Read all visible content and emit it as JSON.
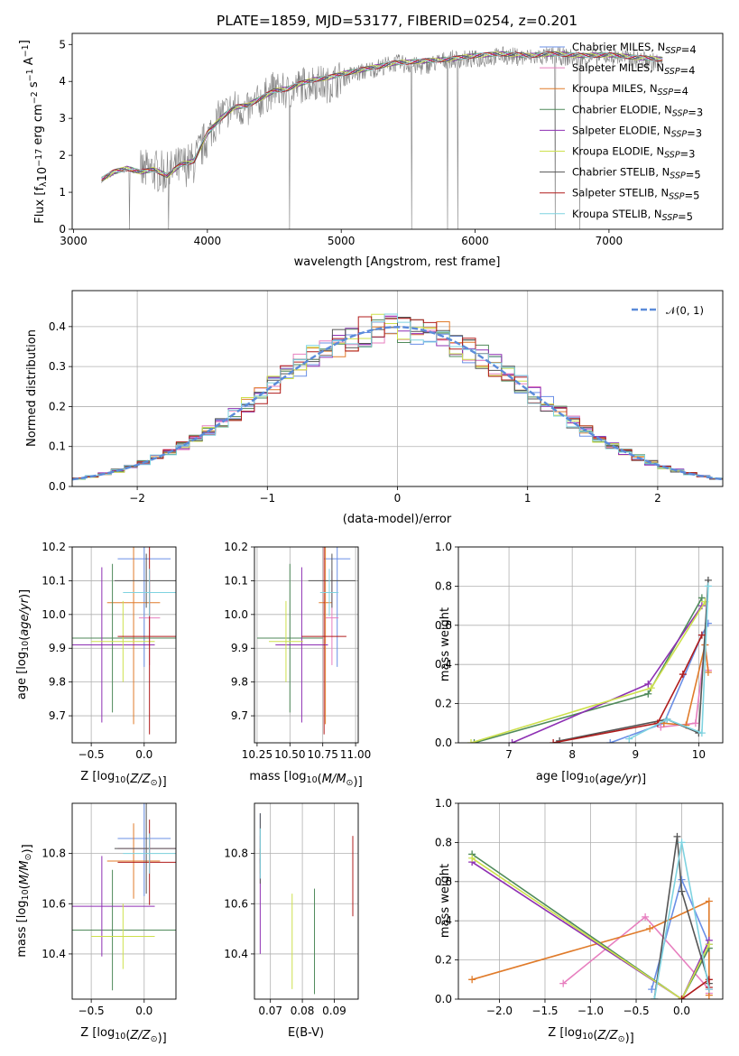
{
  "title": "PLATE=1859, MJD=53177, FIBERID=0254, z=0.201",
  "model_colors": {
    "Chabrier MILES": "#6a8fe6",
    "Salpeter MILES": "#e77fbf",
    "Kroupa MILES": "#e07b2a",
    "Chabrier ELODIE": "#4f8a5a",
    "Salpeter ELODIE": "#8d2fb3",
    "Kroupa ELODIE": "#cde04c",
    "Chabrier STELIB": "#555555",
    "Salpeter STELIB": "#b01c1c",
    "Kroupa STELIB": "#7fd3e0"
  },
  "chart_data": [
    {
      "id": "spectrum",
      "type": "line",
      "title": "PLATE=1859, MJD=53177, FIBERID=0254, z=0.201",
      "xlabel": "wavelength [Angstrom, rest frame]",
      "ylabel": "Flux [f_λ 10^-17 erg cm^-2 s^-1 A^-1]",
      "xlim": [
        2990,
        7850
      ],
      "ylim": [
        0,
        5.3
      ],
      "xticks": [
        3000,
        4000,
        5000,
        6000,
        7000
      ],
      "yticks": [
        0,
        1,
        2,
        3,
        4,
        5
      ],
      "legend_position": "upper-right",
      "observed_spectrum": {
        "color": "#808080",
        "x": [
          3210,
          3300,
          3400,
          3500,
          3600,
          3700,
          3800,
          3900,
          4000,
          4100,
          4200,
          4300,
          4400,
          4500,
          4600,
          4700,
          4800,
          4900,
          5000,
          5200,
          5400,
          5600,
          5800,
          6000,
          6200,
          6400,
          6600,
          6800,
          7000,
          7200,
          7400
        ],
        "y": [
          1.3,
          1.5,
          1.6,
          1.55,
          1.6,
          1.5,
          1.7,
          1.8,
          2.5,
          3.1,
          3.3,
          3.2,
          3.5,
          3.8,
          3.7,
          3.9,
          4.0,
          3.9,
          4.1,
          4.3,
          4.5,
          4.4,
          4.6,
          4.6,
          4.7,
          4.65,
          4.7,
          4.6,
          4.7,
          4.6,
          4.5
        ]
      },
      "model": {
        "x": [
          3210,
          3300,
          3400,
          3500,
          3600,
          3700,
          3800,
          3900,
          4000,
          4100,
          4200,
          4300,
          4400,
          4500,
          4600,
          4700,
          4800,
          4900,
          5000,
          5200,
          5400,
          5600,
          5800,
          6000,
          6200,
          6400,
          6600,
          6800,
          7000,
          7200,
          7400
        ],
        "y": [
          1.35,
          1.55,
          1.65,
          1.55,
          1.62,
          1.45,
          1.75,
          1.85,
          2.6,
          3.0,
          3.3,
          3.35,
          3.55,
          3.75,
          3.8,
          3.95,
          4.05,
          4.1,
          4.2,
          4.35,
          4.5,
          4.55,
          4.6,
          4.7,
          4.75,
          4.7,
          4.75,
          4.7,
          4.72,
          4.65,
          4.6
        ]
      },
      "legend": [
        {
          "model": "Chabrier MILES",
          "n_ssp": "4"
        },
        {
          "model": "Salpeter MILES",
          "n_ssp": "4"
        },
        {
          "model": "Kroupa MILES",
          "n_ssp": "4"
        },
        {
          "model": "Chabrier ELODIE",
          "n_ssp": "3"
        },
        {
          "model": "Salpeter ELODIE",
          "n_ssp": "3"
        },
        {
          "model": "Kroupa ELODIE",
          "n_ssp": "3"
        },
        {
          "model": "Chabrier STELIB",
          "n_ssp": "5"
        },
        {
          "model": "Salpeter STELIB",
          "n_ssp": "5"
        },
        {
          "model": "Kroupa STELIB",
          "n_ssp": "5"
        }
      ]
    },
    {
      "id": "residuals",
      "type": "line",
      "xlabel": "(data-model)/error",
      "ylabel": "Normed distribution",
      "xlim": [
        -2.5,
        2.5
      ],
      "ylim": [
        0,
        0.49
      ],
      "xticks": [
        -2,
        -1,
        0,
        1,
        2
      ],
      "yticks": [
        0.0,
        0.1,
        0.2,
        0.3,
        0.4
      ],
      "grid": true,
      "legend_position": "upper-right",
      "gaussian_label": "𝒩(0, 1)",
      "gaussian_color": "#5b8bd9",
      "bin_width": 0.1,
      "bin_start": -2.5
    },
    {
      "id": "age_vs_Z",
      "type": "scatter",
      "xlabel": "Z [log10(Z/Z⊙)]",
      "ylabel": "age [log10(age/yr)]",
      "xlim": [
        -0.68,
        0.3
      ],
      "ylim": [
        9.62,
        10.2
      ],
      "xticks": [
        -0.5,
        0.0
      ],
      "yticks": [
        9.7,
        9.8,
        9.9,
        10.0,
        10.1,
        10.2
      ],
      "grid": true,
      "points": [
        {
          "model": "Chabrier MILES",
          "x": 0.0,
          "xerr": 0.25,
          "y": 10.165,
          "yerr": 0.32
        },
        {
          "model": "Salpeter MILES",
          "x": 0.05,
          "xerr": 0.1,
          "y": 9.99,
          "yerr": 0.14
        },
        {
          "model": "Kroupa MILES",
          "x": -0.1,
          "xerr": 0.25,
          "y": 10.035,
          "yerr": 0.36
        },
        {
          "model": "Chabrier ELODIE",
          "x": -0.3,
          "xerr": 0.62,
          "y": 9.93,
          "yerr": 0.22
        },
        {
          "model": "Salpeter ELODIE",
          "x": -0.4,
          "xerr": 0.5,
          "y": 9.91,
          "yerr": 0.23
        },
        {
          "model": "Kroupa ELODIE",
          "x": -0.2,
          "xerr": 0.3,
          "y": 9.92,
          "yerr": 0.12
        },
        {
          "model": "Chabrier STELIB",
          "x": 0.02,
          "xerr": 0.3,
          "y": 10.1,
          "yerr": 0.08
        },
        {
          "model": "Salpeter STELIB",
          "x": 0.05,
          "xerr": 0.3,
          "y": 9.935,
          "yerr": 0.29
        },
        {
          "model": "Kroupa STELIB",
          "x": 0.05,
          "xerr": 0.25,
          "y": 10.065,
          "yerr": 0.07
        }
      ]
    },
    {
      "id": "age_vs_mass",
      "type": "scatter",
      "xlabel": "mass [log10(M/M⊙)]",
      "ylabel": "",
      "xlim": [
        10.23,
        11.02
      ],
      "ylim": [
        9.62,
        10.2
      ],
      "xticks": [
        10.25,
        10.5,
        10.75,
        11.0
      ],
      "xticklabels": [
        "10.25",
        "10.50",
        "10.75",
        "11.00"
      ],
      "yticks": [
        9.7,
        9.8,
        9.9,
        10.0,
        10.1,
        10.2
      ],
      "grid": true,
      "points": [
        {
          "model": "Chabrier MILES",
          "x": 10.86,
          "xerr": 0.1,
          "y": 10.165,
          "yerr": 0.32
        },
        {
          "model": "Salpeter MILES",
          "x": 10.82,
          "xerr": 0.05,
          "y": 9.99,
          "yerr": 0.14
        },
        {
          "model": "Kroupa MILES",
          "x": 10.77,
          "xerr": 0.05,
          "y": 10.035,
          "yerr": 0.36
        },
        {
          "model": "Chabrier ELODIE",
          "x": 10.5,
          "xerr": 0.25,
          "y": 9.93,
          "yerr": 0.22
        },
        {
          "model": "Salpeter ELODIE",
          "x": 10.59,
          "xerr": 0.2,
          "y": 9.91,
          "yerr": 0.23
        },
        {
          "model": "Kroupa ELODIE",
          "x": 10.47,
          "xerr": 0.13,
          "y": 9.92,
          "yerr": 0.12
        },
        {
          "model": "Chabrier STELIB",
          "x": 10.82,
          "xerr": 0.18,
          "y": 10.1,
          "yerr": 0.08
        },
        {
          "model": "Salpeter STELIB",
          "x": 10.76,
          "xerr": 0.17,
          "y": 9.935,
          "yerr": 0.29
        },
        {
          "model": "Kroupa STELIB",
          "x": 10.8,
          "xerr": 0.07,
          "y": 10.065,
          "yerr": 0.07
        }
      ]
    },
    {
      "id": "mass_weight_vs_age",
      "type": "line",
      "xlabel": "age [log10(age/yr)]",
      "ylabel": "mass weight",
      "xlim": [
        6.2,
        10.38
      ],
      "ylim": [
        0,
        1.0
      ],
      "xticks": [
        7,
        8,
        9,
        10
      ],
      "yticks": [
        0.0,
        0.2,
        0.4,
        0.6,
        0.8,
        1.0
      ],
      "grid": true,
      "series": [
        {
          "model": "Chabrier MILES",
          "x": [
            8.6,
            9.45,
            10.05,
            10.15
          ],
          "y": [
            0.0,
            0.1,
            0.55,
            0.61
          ]
        },
        {
          "model": "Salpeter MILES",
          "x": [
            9.4,
            9.95,
            10.1,
            10.15
          ],
          "y": [
            0.08,
            0.1,
            0.5,
            0.37
          ]
        },
        {
          "model": "Kroupa MILES",
          "x": [
            9.45,
            9.8,
            10.1,
            10.15
          ],
          "y": [
            0.1,
            0.09,
            0.5,
            0.36
          ]
        },
        {
          "model": "Chabrier ELODIE",
          "x": [
            6.45,
            9.2,
            10.05
          ],
          "y": [
            0.0,
            0.25,
            0.74
          ]
        },
        {
          "model": "Salpeter ELODIE",
          "x": [
            7.05,
            9.2,
            10.05
          ],
          "y": [
            0.0,
            0.3,
            0.7
          ]
        },
        {
          "model": "Kroupa ELODIE",
          "x": [
            6.4,
            9.25,
            10.1
          ],
          "y": [
            0.0,
            0.28,
            0.72
          ]
        },
        {
          "model": "Chabrier STELIB",
          "x": [
            7.8,
            9.5,
            10.0,
            10.15
          ],
          "y": [
            0.01,
            0.12,
            0.05,
            0.83
          ]
        },
        {
          "model": "Salpeter STELIB",
          "x": [
            7.7,
            9.35,
            9.75,
            10.05
          ],
          "y": [
            0.0,
            0.1,
            0.35,
            0.55
          ]
        },
        {
          "model": "Kroupa STELIB",
          "x": [
            8.9,
            9.5,
            10.05,
            10.15
          ],
          "y": [
            0.02,
            0.12,
            0.05,
            0.8
          ]
        }
      ]
    },
    {
      "id": "mass_vs_Z",
      "type": "scatter",
      "xlabel": "Z [log10(Z/Z⊙)]",
      "ylabel": "mass [log10(M/M⊙)]",
      "xlim": [
        -0.68,
        0.3
      ],
      "ylim": [
        10.22,
        11.0
      ],
      "xticks": [
        -0.5,
        0.0
      ],
      "yticks": [
        10.4,
        10.6,
        10.8
      ],
      "grid": true,
      "points": [
        {
          "model": "Chabrier MILES",
          "x": 0.0,
          "xerr": 0.25,
          "y": 10.86,
          "yerr": 0.23
        },
        {
          "model": "Salpeter MILES",
          "x": 0.05,
          "xerr": 0.3,
          "y": 10.82,
          "yerr": 0.07
        },
        {
          "model": "Kroupa MILES",
          "x": -0.1,
          "xerr": 0.25,
          "y": 10.77,
          "yerr": 0.15
        },
        {
          "model": "Chabrier ELODIE",
          "x": -0.3,
          "xerr": 0.62,
          "y": 10.495,
          "yerr": 0.24
        },
        {
          "model": "Salpeter ELODIE",
          "x": -0.4,
          "xerr": 0.5,
          "y": 10.59,
          "yerr": 0.2
        },
        {
          "model": "Kroupa ELODIE",
          "x": -0.2,
          "xerr": 0.3,
          "y": 10.47,
          "yerr": 0.13
        },
        {
          "model": "Chabrier STELIB",
          "x": 0.02,
          "xerr": 0.3,
          "y": 10.82,
          "yerr": 0.18
        },
        {
          "model": "Salpeter STELIB",
          "x": 0.05,
          "xerr": 0.3,
          "y": 10.765,
          "yerr": 0.17
        },
        {
          "model": "Kroupa STELIB",
          "x": 0.05,
          "xerr": 0.25,
          "y": 10.8,
          "yerr": 0.08
        }
      ]
    },
    {
      "id": "mass_vs_ebv",
      "type": "scatter",
      "xlabel": "E(B-V)",
      "ylabel": "",
      "xlim": [
        0.065,
        0.0975
      ],
      "ylim": [
        10.22,
        11.0
      ],
      "xticks": [
        0.07,
        0.08,
        0.09
      ],
      "yticks": [
        10.4,
        10.6,
        10.8
      ],
      "grid": true,
      "points": [
        {
          "model": "Chabrier MILES",
          "x": 0.0668,
          "y": 10.86,
          "yerr": 0.1
        },
        {
          "model": "Salpeter MILES",
          "x": 0.0668,
          "y": 10.82,
          "yerr": 0.05
        },
        {
          "model": "Kroupa MILES",
          "x": 0.0668,
          "y": 10.77,
          "yerr": 0.05
        },
        {
          "model": "Chabrier ELODIE",
          "x": 0.0838,
          "y": 10.45,
          "yerr": 0.21
        },
        {
          "model": "Salpeter ELODIE",
          "x": 0.0668,
          "y": 10.59,
          "yerr": 0.19
        },
        {
          "model": "Kroupa ELODIE",
          "x": 0.0768,
          "y": 10.45,
          "yerr": 0.19
        },
        {
          "model": "Chabrier STELIB",
          "x": 0.0668,
          "y": 10.82,
          "yerr": 0.14
        },
        {
          "model": "Salpeter STELIB",
          "x": 0.0958,
          "y": 10.71,
          "yerr": 0.16
        },
        {
          "model": "Kroupa STELIB",
          "x": 0.0668,
          "y": 10.8,
          "yerr": 0.1
        }
      ]
    },
    {
      "id": "mass_weight_vs_Z",
      "type": "line",
      "xlabel": "Z [log10(Z/Z⊙)]",
      "ylabel": "mass weight",
      "xlim": [
        -2.45,
        0.45
      ],
      "ylim": [
        0,
        1.0
      ],
      "xticks": [
        -2.0,
        -1.5,
        -1.0,
        -0.5,
        0.0
      ],
      "yticks": [
        0.0,
        0.2,
        0.4,
        0.6,
        0.8,
        1.0
      ],
      "grid": true,
      "series": [
        {
          "model": "Chabrier MILES",
          "x": [
            -0.33,
            0.0,
            0.3,
            0.3
          ],
          "y": [
            0.05,
            0.61,
            0.28,
            0.05
          ]
        },
        {
          "model": "Salpeter MILES",
          "x": [
            -1.3,
            -0.4,
            0.3,
            0.3
          ],
          "y": [
            0.08,
            0.42,
            0.05,
            0.03
          ]
        },
        {
          "model": "Kroupa MILES",
          "x": [
            -2.3,
            -0.35,
            0.3,
            0.3
          ],
          "y": [
            0.1,
            0.36,
            0.5,
            0.02
          ]
        },
        {
          "model": "Chabrier ELODIE",
          "x": [
            -2.3,
            0.0,
            0.3
          ],
          "y": [
            0.74,
            0.0,
            0.26
          ]
        },
        {
          "model": "Salpeter ELODIE",
          "x": [
            -2.3,
            0.0,
            0.3
          ],
          "y": [
            0.7,
            0.0,
            0.3
          ]
        },
        {
          "model": "Kroupa ELODIE",
          "x": [
            -2.3,
            0.0,
            0.3
          ],
          "y": [
            0.72,
            0.0,
            0.28
          ]
        },
        {
          "model": "Chabrier STELIB",
          "x": [
            -0.3,
            -0.05,
            0.0,
            0.3
          ],
          "y": [
            0.0,
            0.83,
            0.55,
            0.08
          ]
        },
        {
          "model": "Salpeter STELIB",
          "x": [
            0.0,
            0.3,
            0.3
          ],
          "y": [
            0.0,
            0.1,
            0.06
          ]
        },
        {
          "model": "Kroupa STELIB",
          "x": [
            -0.3,
            0.0,
            0.3
          ],
          "y": [
            0.0,
            0.8,
            0.05
          ]
        }
      ]
    }
  ]
}
